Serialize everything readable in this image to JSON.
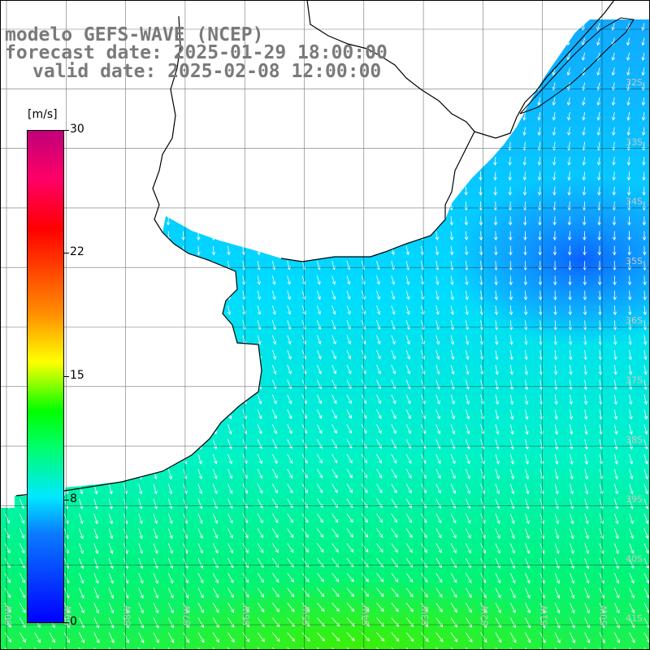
{
  "title": {
    "line1": "modelo GEFS-WAVE (NCEP)",
    "line2": "forecast date: 2025-01-29 18:00:00",
    "line3": "valid date: 2025-02-08 12:00:00"
  },
  "colorbar": {
    "unit": "[m/s]",
    "ticks": [
      "30",
      "22",
      "15",
      "8",
      "0"
    ],
    "tick_values": [
      30,
      22,
      15,
      8,
      0
    ],
    "min": 0,
    "max": 30,
    "colors": [
      "#0000ff",
      "#00e8ff",
      "#00ff00",
      "#ffff00",
      "#ff0000",
      "#c0007a"
    ]
  },
  "map": {
    "variable": "wind speed and direction",
    "ocean_fill": "#1fb6ff",
    "land_fill": "#ffffff",
    "coastline_color": "#000000",
    "arrow_color": "#ffffff",
    "lat_labels": [
      "32S",
      "33S",
      "34S",
      "35S",
      "36S",
      "37S",
      "38S",
      "39S",
      "40S",
      "41S"
    ],
    "lon_labels": [
      "60W",
      "59W",
      "58W",
      "57W",
      "56W",
      "55W",
      "54W",
      "53W",
      "52W",
      "51W",
      "50W"
    ]
  }
}
